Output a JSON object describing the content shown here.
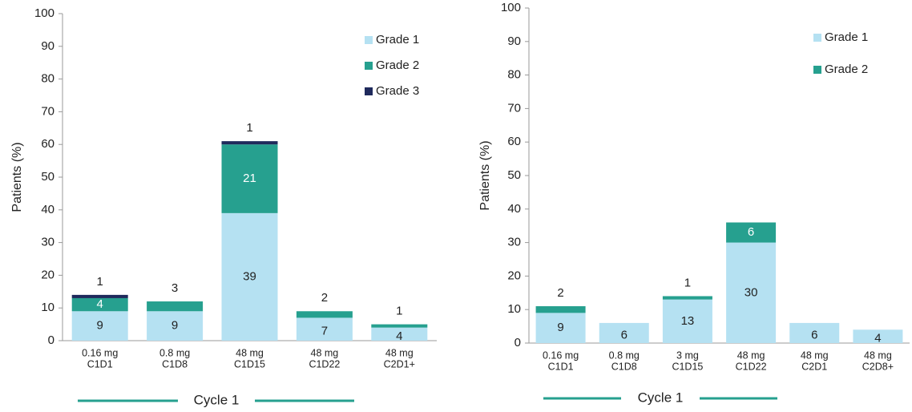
{
  "chart_data": [
    {
      "type": "bar",
      "stacked": true,
      "y_label": "Patients (%)",
      "categories": [
        [
          "0.16 mg",
          "C1D1"
        ],
        [
          "0.8 mg",
          "C1D8"
        ],
        [
          "48 mg",
          "C1D15"
        ],
        [
          "48 mg",
          "C1D22"
        ],
        [
          "48 mg",
          "C2D1+"
        ]
      ],
      "series": [
        {
          "name": "Grade 1",
          "color": "#b5e1f2",
          "values": [
            9,
            9,
            39,
            7,
            4
          ]
        },
        {
          "name": "Grade 2",
          "color": "#26a08f",
          "values": [
            4,
            3,
            21,
            2,
            1
          ]
        },
        {
          "name": "Grade 3",
          "color": "#1f2a5c",
          "values": [
            1,
            null,
            1,
            null,
            null
          ]
        }
      ],
      "ylim": [
        0,
        100
      ],
      "yticks": [
        0,
        10,
        20,
        30,
        40,
        50,
        60,
        70,
        80,
        90,
        100
      ],
      "legend": "top-right",
      "annotation": "Cycle 1"
    },
    {
      "type": "bar",
      "stacked": true,
      "y_label": "Patients (%)",
      "categories": [
        [
          "0.16 mg",
          "C1D1"
        ],
        [
          "0.8 mg",
          "C1D8"
        ],
        [
          "3 mg",
          "C1D15"
        ],
        [
          "48 mg",
          "C1D22"
        ],
        [
          "48 mg",
          "C2D1"
        ],
        [
          "48 mg",
          "C2D8+"
        ]
      ],
      "series": [
        {
          "name": "Grade 1",
          "color": "#b5e1f2",
          "values": [
            9,
            6,
            13,
            30,
            6,
            4
          ]
        },
        {
          "name": "Grade 2",
          "color": "#26a08f",
          "values": [
            2,
            null,
            1,
            6,
            null,
            null
          ]
        }
      ],
      "ylim": [
        0,
        100
      ],
      "yticks": [
        0,
        10,
        20,
        30,
        40,
        50,
        60,
        70,
        80,
        90,
        100
      ],
      "legend": "top-right",
      "annotation": "Cycle 1"
    }
  ]
}
